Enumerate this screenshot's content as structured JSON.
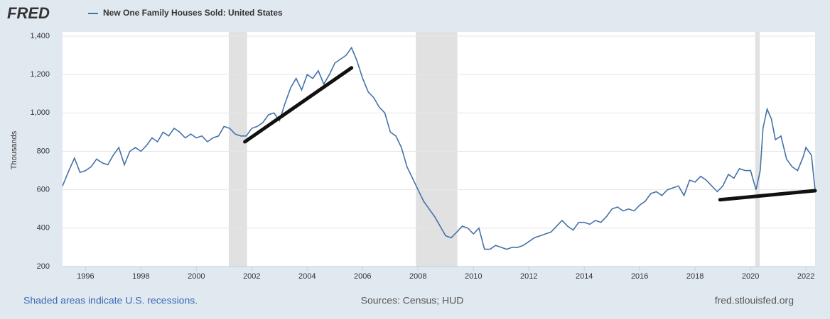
{
  "chart_data": {
    "type": "line",
    "logo": "FRED",
    "ylabel": "Thousands",
    "note": "Shaded areas indicate U.S. recessions.",
    "source": "Sources: Census; HUD",
    "site": "fred.stlouisfed.org",
    "xlim": [
      1995.17,
      2022.33
    ],
    "xticks": [
      1996,
      1998,
      2000,
      2002,
      2004,
      2006,
      2008,
      2010,
      2012,
      2014,
      2016,
      2018,
      2020,
      2022
    ],
    "ylim": [
      200,
      1400
    ],
    "yticks": [
      200,
      400,
      600,
      800,
      {
        "value": 1000,
        "label": "1,000"
      },
      {
        "value": 1200,
        "label": "1,200"
      },
      {
        "value": 1400,
        "label": "1,400"
      }
    ],
    "grid": true,
    "recession_color": "#e1e1e1",
    "recessions": [
      [
        2001.17,
        2001.83
      ],
      [
        2007.92,
        2009.42
      ],
      [
        2020.17,
        2020.33
      ]
    ],
    "series": [
      {
        "name": "New One Family Houses Sold: United States",
        "color": "#4572a7",
        "x": [
          1995.17,
          1995.4,
          1995.6,
          1995.8,
          1996.0,
          1996.2,
          1996.4,
          1996.6,
          1996.8,
          1997.0,
          1997.2,
          1997.4,
          1997.6,
          1997.8,
          1998.0,
          1998.2,
          1998.4,
          1998.6,
          1998.8,
          1999.0,
          1999.2,
          1999.4,
          1999.6,
          1999.8,
          2000.0,
          2000.2,
          2000.4,
          2000.6,
          2000.8,
          2001.0,
          2001.2,
          2001.4,
          2001.6,
          2001.8,
          2002.0,
          2002.2,
          2002.4,
          2002.6,
          2002.8,
          2003.0,
          2003.2,
          2003.4,
          2003.6,
          2003.8,
          2004.0,
          2004.2,
          2004.4,
          2004.6,
          2004.8,
          2005.0,
          2005.2,
          2005.4,
          2005.6,
          2005.8,
          2006.0,
          2006.2,
          2006.4,
          2006.6,
          2006.8,
          2007.0,
          2007.2,
          2007.4,
          2007.6,
          2007.8,
          2008.0,
          2008.2,
          2008.4,
          2008.6,
          2008.8,
          2009.0,
          2009.2,
          2009.4,
          2009.6,
          2009.8,
          2010.0,
          2010.2,
          2010.4,
          2010.6,
          2010.8,
          2011.0,
          2011.2,
          2011.4,
          2011.6,
          2011.8,
          2012.0,
          2012.2,
          2012.4,
          2012.6,
          2012.8,
          2013.0,
          2013.2,
          2013.4,
          2013.6,
          2013.8,
          2014.0,
          2014.2,
          2014.4,
          2014.6,
          2014.8,
          2015.0,
          2015.2,
          2015.4,
          2015.6,
          2015.8,
          2016.0,
          2016.2,
          2016.4,
          2016.6,
          2016.8,
          2017.0,
          2017.2,
          2017.4,
          2017.6,
          2017.8,
          2018.0,
          2018.2,
          2018.4,
          2018.6,
          2018.8,
          2019.0,
          2019.2,
          2019.4,
          2019.6,
          2019.8,
          2020.0,
          2020.2,
          2020.35,
          2020.45,
          2020.6,
          2020.75,
          2020.9,
          2021.1,
          2021.3,
          2021.5,
          2021.7,
          2021.9,
          2022.0,
          2022.2,
          2022.33
        ],
        "values": [
          620,
          700,
          765,
          690,
          700,
          720,
          760,
          740,
          730,
          780,
          820,
          730,
          800,
          820,
          800,
          830,
          870,
          850,
          900,
          880,
          920,
          900,
          870,
          890,
          870,
          880,
          850,
          870,
          880,
          930,
          920,
          890,
          880,
          880,
          920,
          930,
          950,
          990,
          1000,
          960,
          1050,
          1130,
          1180,
          1120,
          1200,
          1180,
          1220,
          1150,
          1200,
          1260,
          1280,
          1300,
          1340,
          1270,
          1180,
          1110,
          1080,
          1030,
          1000,
          900,
          880,
          820,
          720,
          660,
          600,
          540,
          500,
          460,
          410,
          360,
          350,
          380,
          410,
          400,
          370,
          400,
          290,
          290,
          310,
          300,
          290,
          300,
          300,
          310,
          330,
          350,
          360,
          370,
          380,
          410,
          440,
          410,
          390,
          430,
          430,
          420,
          440,
          430,
          460,
          500,
          510,
          490,
          500,
          490,
          520,
          540,
          580,
          590,
          570,
          600,
          610,
          620,
          570,
          650,
          640,
          670,
          650,
          620,
          590,
          620,
          680,
          660,
          710,
          700,
          700,
          600,
          700,
          920,
          1020,
          970,
          860,
          880,
          760,
          720,
          700,
          770,
          820,
          780,
          600
        ]
      }
    ],
    "trend_lines": [
      {
        "color": "#111111",
        "x": [
          2001.75,
          2005.6
        ],
        "values": [
          850,
          1235
        ]
      },
      {
        "color": "#111111",
        "x": [
          2018.9,
          2022.33
        ],
        "values": [
          548,
          595
        ]
      }
    ]
  }
}
